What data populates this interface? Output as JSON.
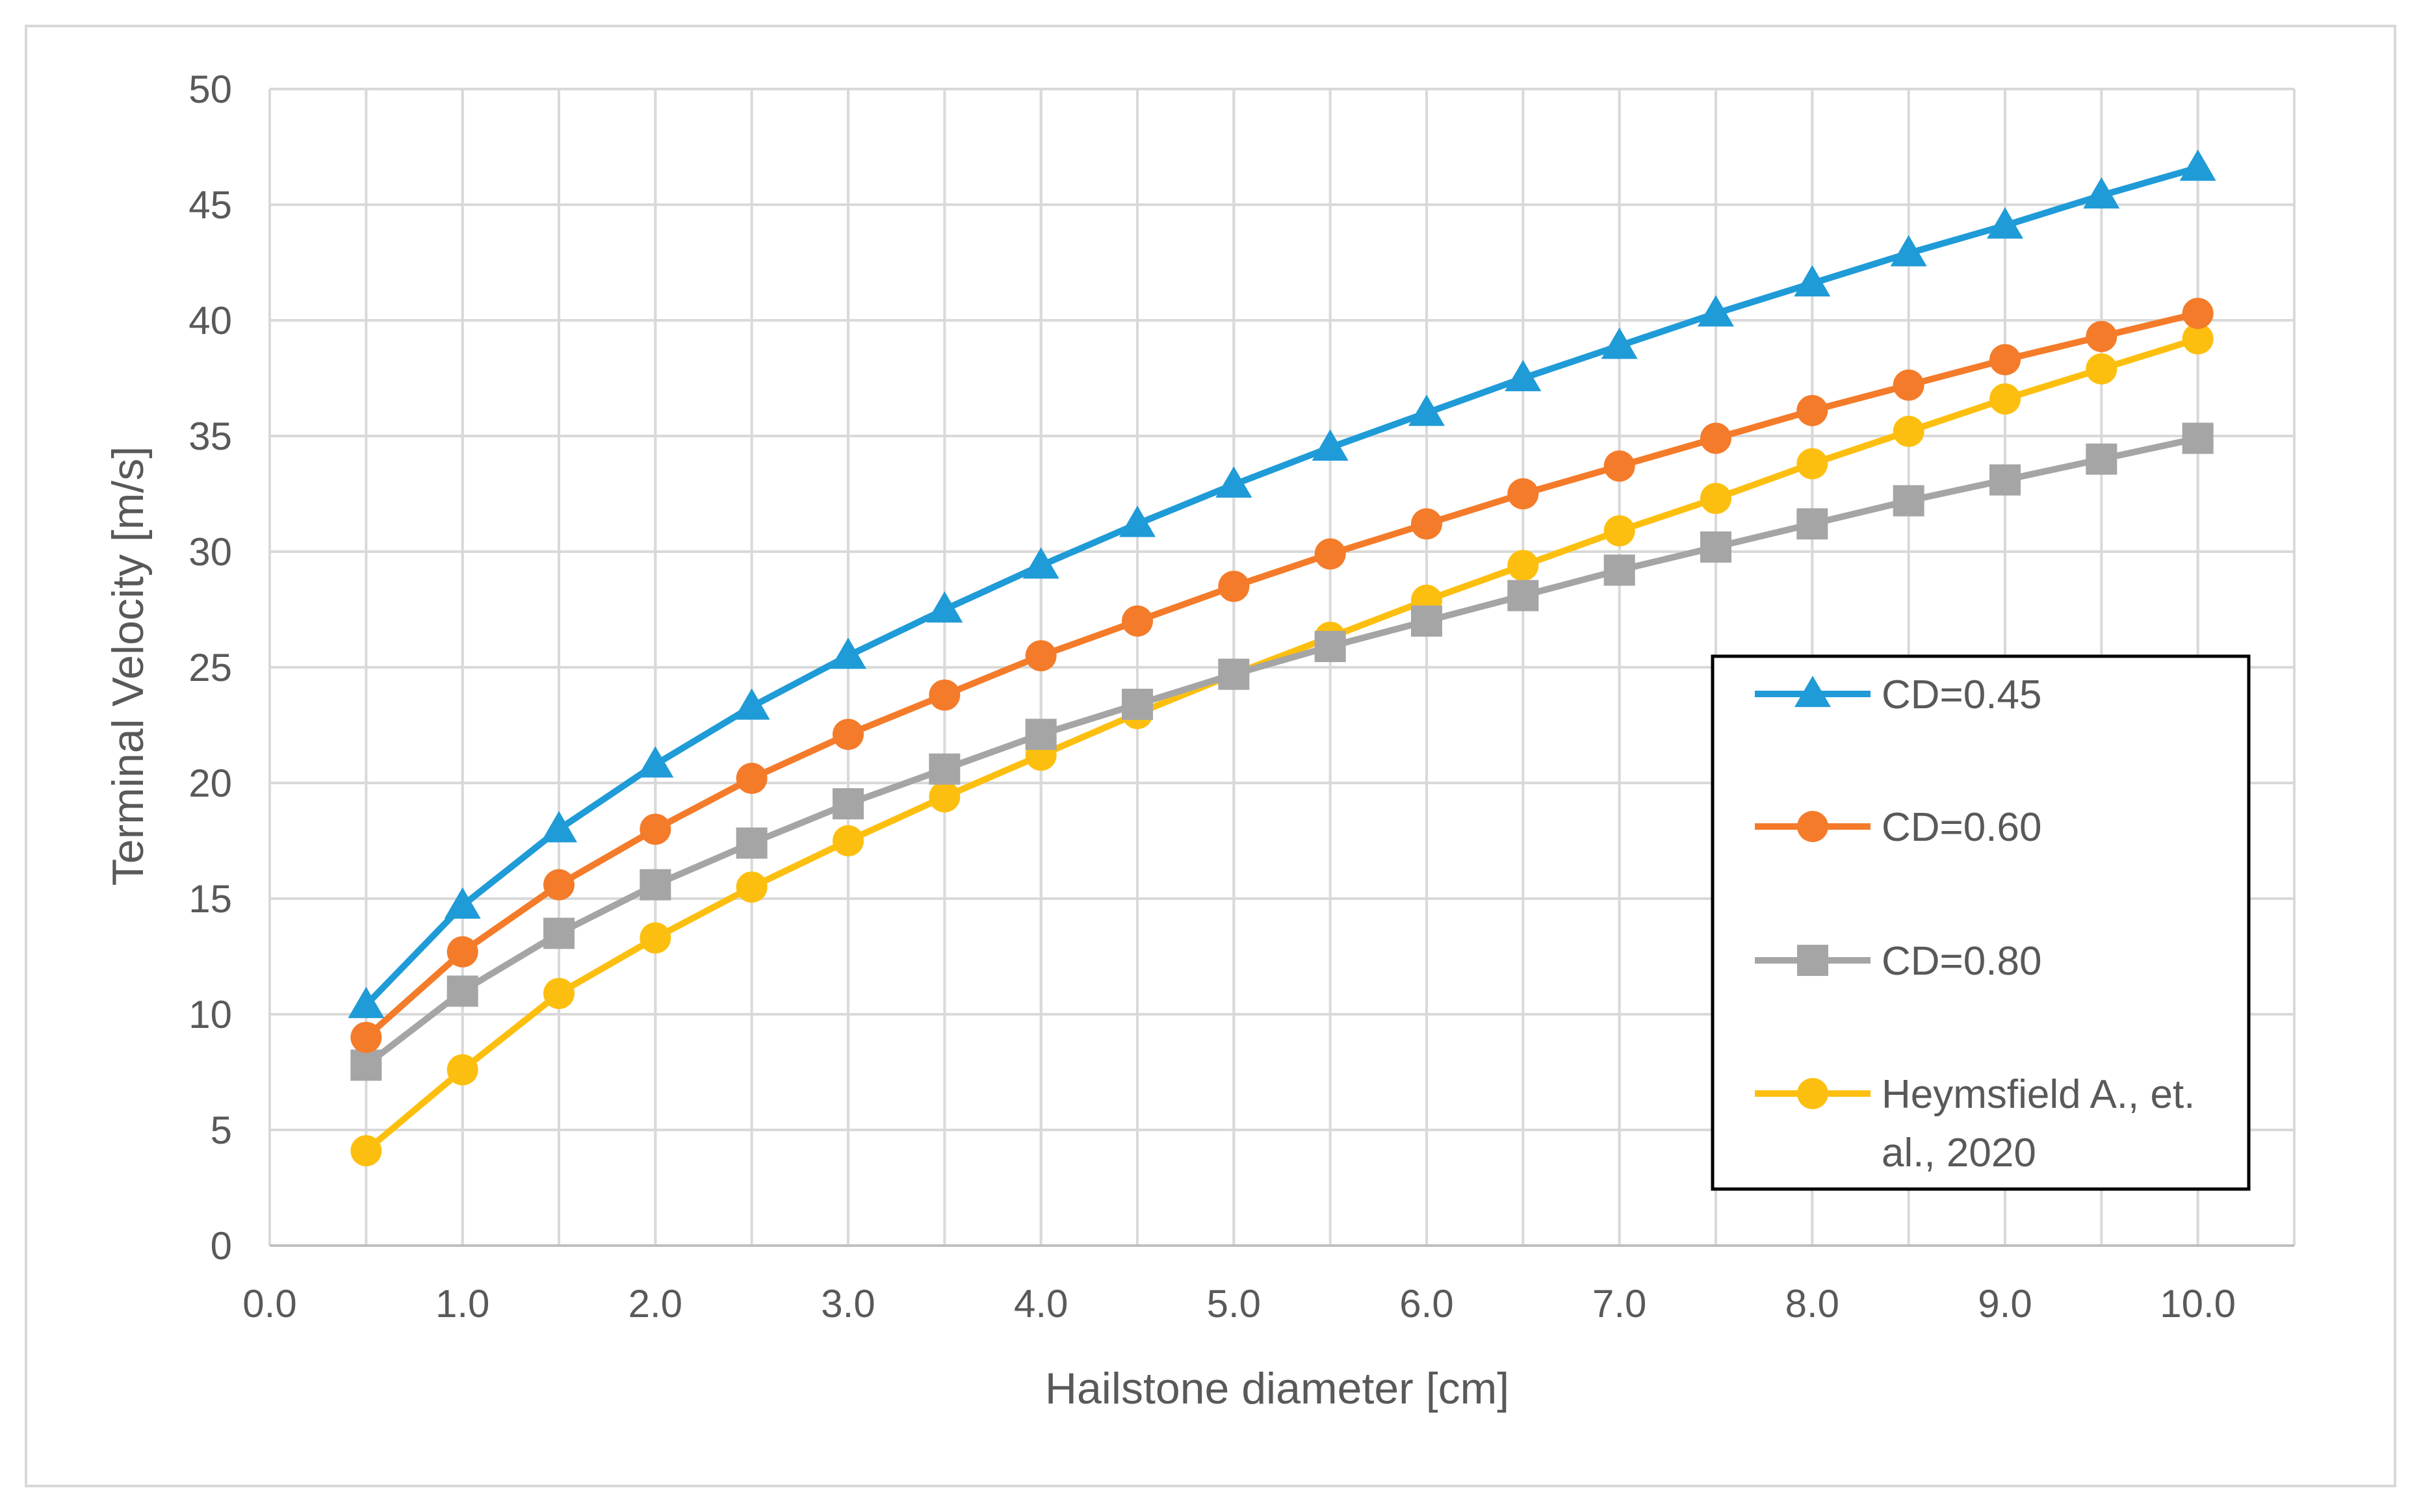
{
  "chart_data": {
    "type": "line",
    "title": "",
    "xlabel": "Hailstone diameter [cm]",
    "ylabel": "Terminal Velocity [m/s]",
    "xlim": [
      0,
      10.5
    ],
    "ylim": [
      0,
      50
    ],
    "x_ticks": [
      0,
      1,
      2,
      3,
      4,
      5,
      6,
      7,
      8,
      9,
      10
    ],
    "x_tick_labels": [
      "0.0",
      "1.0",
      "2.0",
      "3.0",
      "4.0",
      "5.0",
      "6.0",
      "7.0",
      "8.0",
      "9.0",
      "10.0"
    ],
    "y_ticks": [
      0,
      5,
      10,
      15,
      20,
      25,
      30,
      35,
      40,
      45,
      50
    ],
    "y_tick_labels": [
      "0",
      "5",
      "10",
      "15",
      "20",
      "25",
      "30",
      "35",
      "40",
      "45",
      "50"
    ],
    "grid": true,
    "legend_position": "right",
    "x": [
      0.5,
      1.0,
      1.5,
      2.0,
      2.5,
      3.0,
      3.5,
      4.0,
      4.5,
      5.0,
      5.5,
      6.0,
      6.5,
      7.0,
      7.5,
      8.0,
      8.5,
      9.0,
      9.5,
      10.0
    ],
    "series": [
      {
        "name": "CD=0.45",
        "color": "#1f9bd7",
        "marker": "triangle",
        "values": [
          10.4,
          14.7,
          18.0,
          20.8,
          23.3,
          25.5,
          27.5,
          29.4,
          31.2,
          32.9,
          34.5,
          36.0,
          37.5,
          38.9,
          40.3,
          41.6,
          42.9,
          44.1,
          45.4,
          46.6
        ]
      },
      {
        "name": "CD=0.60",
        "color": "#f47b2a",
        "marker": "circle",
        "values": [
          9.0,
          12.7,
          15.6,
          18.0,
          20.2,
          22.1,
          23.8,
          25.5,
          27.0,
          28.5,
          29.9,
          31.2,
          32.5,
          33.7,
          34.9,
          36.1,
          37.2,
          38.3,
          39.3,
          40.3
        ]
      },
      {
        "name": "CD=0.80",
        "color": "#a5a5a5",
        "marker": "square",
        "values": [
          7.8,
          11.0,
          13.5,
          15.6,
          17.4,
          19.1,
          20.6,
          22.1,
          23.4,
          24.7,
          25.9,
          27.0,
          28.1,
          29.2,
          30.2,
          31.2,
          32.2,
          33.1,
          34.0,
          34.9
        ]
      },
      {
        "name": "Heymsfield A., et. al., 2020",
        "name_lines": [
          "Heymsfield A., et.",
          "al., 2020"
        ],
        "color": "#fdbf0f",
        "marker": "circle",
        "values": [
          4.1,
          7.6,
          10.9,
          13.3,
          15.5,
          17.5,
          19.4,
          21.2,
          23.0,
          24.7,
          26.3,
          27.9,
          29.4,
          30.9,
          32.3,
          33.8,
          35.2,
          36.6,
          37.9,
          39.2
        ]
      }
    ]
  }
}
